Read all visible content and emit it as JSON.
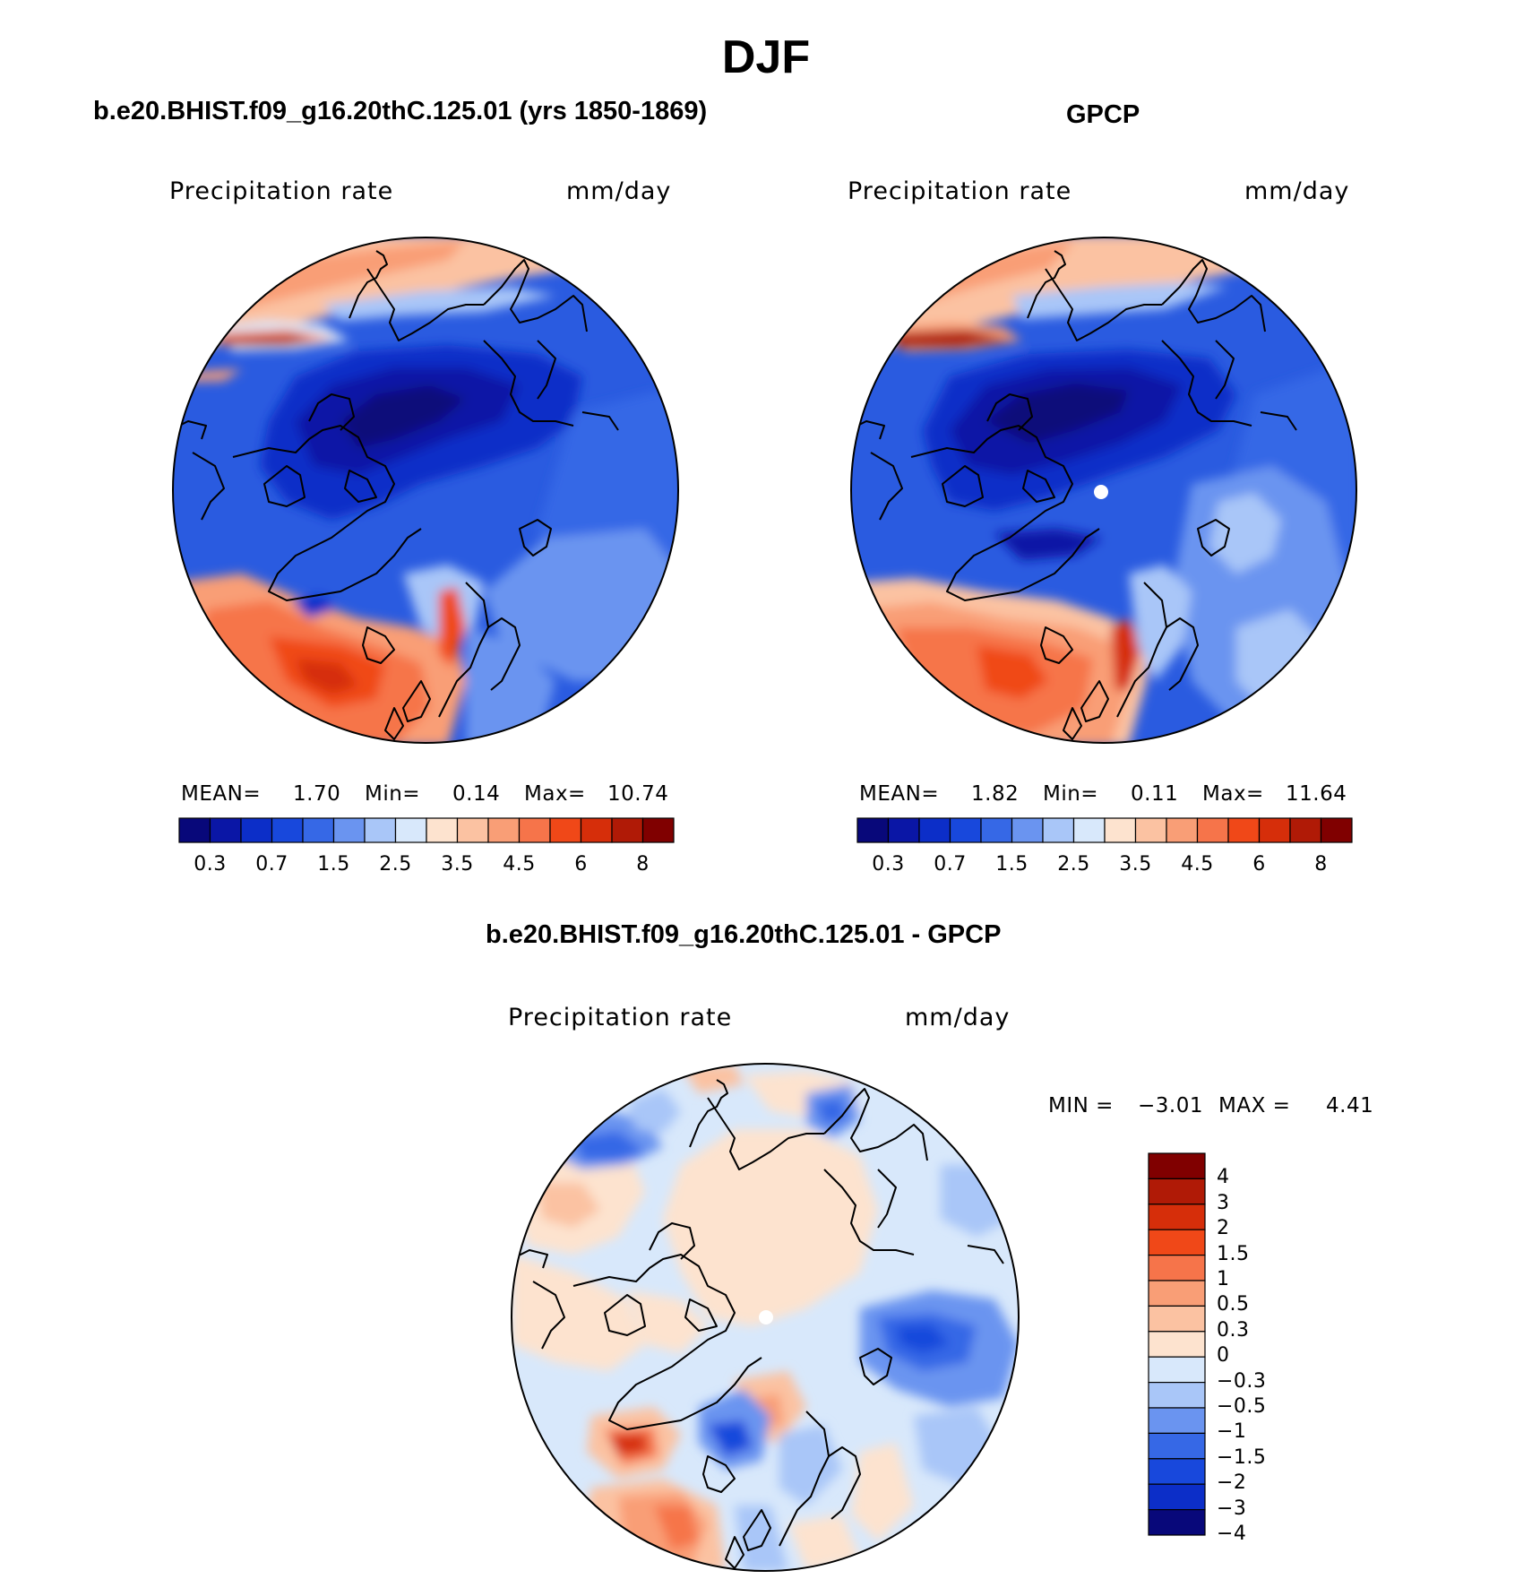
{
  "title": "DJF",
  "colors": {
    "abs_scale": [
      "#08087a",
      "#0a16a6",
      "#0c2ec8",
      "#1848dc",
      "#3668e6",
      "#6a94f0",
      "#a9c6f8",
      "#d8e8fb",
      "#fde3cf",
      "#fbc2a2",
      "#f99e76",
      "#f6744a",
      "#f04818",
      "#d62e0a",
      "#b01a06",
      "#800000"
    ],
    "diff_scale": [
      "#08087a",
      "#0c2ec8",
      "#1848dc",
      "#3668e6",
      "#6a94f0",
      "#a9c6f8",
      "#d8e8fb",
      "#fde3cf",
      "#fbc2a2",
      "#f99e76",
      "#f6744a",
      "#f04818",
      "#d62e0a",
      "#b01a06",
      "#800000"
    ]
  },
  "panels": {
    "model": {
      "title": "b.e20.BHIST.f09_g16.20thC.125.01 (yrs 1850-1869)",
      "variable": "Precipitation rate",
      "units": "mm/day",
      "mean_label": "MEAN=",
      "mean_value": "1.70",
      "min_label": "Min=",
      "min_value": "0.14",
      "max_label": "Max=",
      "max_value": "10.74",
      "colorbar_ticks": [
        "0.3",
        "0.7",
        "1.5",
        "2.5",
        "3.5",
        "4.5",
        "6",
        "8"
      ]
    },
    "obs": {
      "title": "GPCP",
      "variable": "Precipitation rate",
      "units": "mm/day",
      "mean_label": "MEAN=",
      "mean_value": "1.82",
      "min_label": "Min=",
      "min_value": "0.11",
      "max_label": "Max=",
      "max_value": "11.64",
      "colorbar_ticks": [
        "0.3",
        "0.7",
        "1.5",
        "2.5",
        "3.5",
        "4.5",
        "6",
        "8"
      ]
    },
    "diff": {
      "title": "b.e20.BHIST.f09_g16.20thC.125.01 - GPCP",
      "variable": "Precipitation rate",
      "units": "mm/day",
      "min_label": "MIN =",
      "min_value": "−3.01",
      "max_label": "MAX =",
      "max_value": "4.41",
      "colorbar_ticks": [
        "4",
        "3",
        "2",
        "1.5",
        "1",
        "0.5",
        "0.3",
        "0",
        "−0.3",
        "−0.5",
        "−1",
        "−1.5",
        "−2",
        "−3",
        "−4"
      ]
    }
  }
}
